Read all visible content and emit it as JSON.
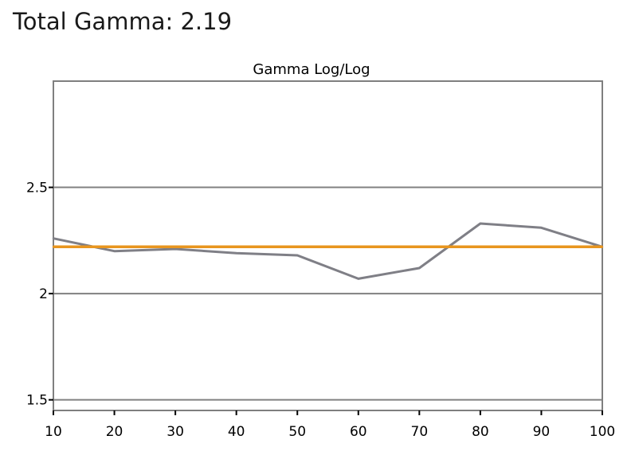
{
  "header": {
    "total_gamma_label": "Total Gamma: 2.19"
  },
  "chart_data": {
    "type": "line",
    "title": "Gamma Log/Log",
    "xlabel": "",
    "ylabel": "",
    "x": [
      10,
      20,
      30,
      40,
      50,
      60,
      70,
      80,
      90,
      100
    ],
    "xlim": [
      10,
      100
    ],
    "ylim": [
      1.45,
      3.0
    ],
    "x_ticks": [
      "10",
      "20",
      "30",
      "40",
      "50",
      "60",
      "70",
      "80",
      "90",
      "100"
    ],
    "y_ticks": [
      {
        "value": 2.5,
        "label": "2.5"
      },
      {
        "value": 2.0,
        "label": "2"
      },
      {
        "value": 1.5,
        "label": "1.5"
      }
    ],
    "grid": true,
    "series": [
      {
        "values": [
          2.26,
          2.2,
          2.21,
          2.19,
          2.18,
          2.07,
          2.12,
          2.33,
          2.31,
          2.22
        ],
        "color": "#7f7f86"
      },
      {
        "values": [
          2.22,
          2.22,
          2.22,
          2.22,
          2.22,
          2.22,
          2.22,
          2.22,
          2.22,
          2.22
        ],
        "color": "#e8951e"
      }
    ],
    "gridline_color": "#808080",
    "axis_color": "#7f7f7f"
  }
}
